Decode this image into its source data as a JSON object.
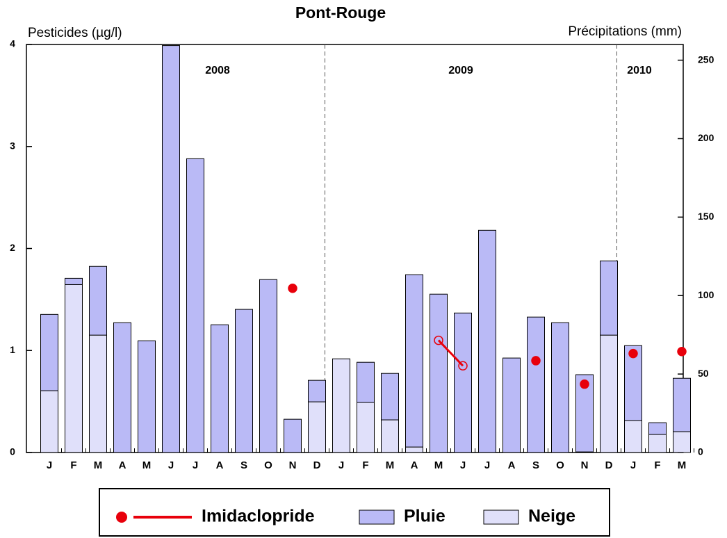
{
  "chart_data": {
    "type": "bar",
    "title": "Pont-Rouge",
    "y_label": "Pesticides (µg/l)",
    "y2_label": "Précipitations (mm)",
    "years": [
      "2008",
      "2009",
      "2010"
    ],
    "categories": [
      "J",
      "F",
      "M",
      "A",
      "M",
      "J",
      "J",
      "A",
      "S",
      "O",
      "N",
      "D",
      "J",
      "F",
      "M",
      "A",
      "M",
      "J",
      "J",
      "A",
      "S",
      "O",
      "N",
      "D",
      "J",
      "F",
      "M"
    ],
    "series": [
      {
        "name": "Imidaclopride",
        "type": "line",
        "axis": "y",
        "color": "#e8000b",
        "values": [
          null,
          null,
          null,
          null,
          null,
          null,
          null,
          null,
          null,
          null,
          1.61,
          null,
          null,
          null,
          null,
          null,
          1.1,
          0.85,
          null,
          null,
          0.9,
          null,
          0.67,
          null,
          0.97,
          null,
          0.99
        ]
      },
      {
        "name": "Pluie",
        "type": "bar",
        "axis": "y2",
        "color": "#babaf6",
        "values": [
          48.6,
          4,
          43.8,
          82.7,
          71.2,
          259.3,
          187.2,
          81.4,
          91.2,
          110.2,
          21.2,
          13.7,
          0,
          25.6,
          29.6,
          109.8,
          100.9,
          88.9,
          141.6,
          60.2,
          86.3,
          82.7,
          49.2,
          47.3,
          47.7,
          7.5,
          34
        ]
      },
      {
        "name": "Neige",
        "type": "bar",
        "axis": "y2",
        "color": "#e0e0fa",
        "values": [
          39.4,
          107,
          74.8,
          0,
          0,
          0,
          0,
          0,
          0,
          0,
          0,
          32.3,
          59.7,
          31.9,
          20.8,
          3.5,
          0,
          0,
          0,
          0,
          0,
          0,
          0.4,
          74.8,
          20.4,
          11.5,
          13.3
        ]
      }
    ],
    "ylim": [
      0,
      4
    ],
    "yticks": [
      0,
      1,
      2,
      3,
      4
    ],
    "y2lim": [
      0,
      260
    ],
    "y2ticks": [
      0,
      50,
      100,
      150,
      200,
      250
    ]
  }
}
